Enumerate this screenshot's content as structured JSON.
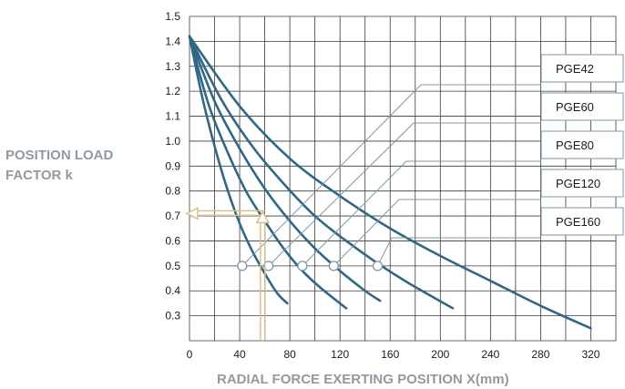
{
  "chart_data": {
    "type": "line",
    "title": "",
    "ylabel_lines": [
      "POSITION LOAD",
      "FACTOR k"
    ],
    "xlabel": "RADIAL FORCE EXERTING POSITION X(mm)",
    "xlim": [
      0,
      340
    ],
    "ylim": [
      0.2,
      1.5
    ],
    "x_ticks": [
      0,
      40,
      80,
      120,
      160,
      200,
      240,
      280,
      320
    ],
    "y_ticks": [
      0.3,
      0.4,
      0.5,
      0.6,
      0.7,
      0.8,
      0.9,
      1.0,
      1.1,
      1.2,
      1.3,
      1.4,
      1.5
    ],
    "grid": true,
    "colors": {
      "curve": "#2f6784",
      "grid": "#3a3a3a",
      "leader": "#7d97a6",
      "example": "#d9bf8c",
      "label_text": "#8f9aa3"
    },
    "series": [
      {
        "name": "PGE42",
        "x": [
          0,
          10,
          20,
          30,
          40,
          50,
          60,
          70,
          78
        ],
        "y": [
          1.42,
          1.18,
          0.98,
          0.81,
          0.67,
          0.56,
          0.47,
          0.39,
          0.35
        ],
        "marker": [
          42,
          0.5
        ]
      },
      {
        "name": "PGE60",
        "x": [
          0,
          15,
          30,
          45,
          60,
          75,
          90,
          105,
          125
        ],
        "y": [
          1.42,
          1.15,
          0.96,
          0.8,
          0.68,
          0.57,
          0.48,
          0.41,
          0.33
        ],
        "marker": [
          63,
          0.5
        ]
      },
      {
        "name": "PGE80",
        "x": [
          0,
          20,
          40,
          60,
          80,
          100,
          120,
          140,
          152
        ],
        "y": [
          1.42,
          1.16,
          0.97,
          0.81,
          0.68,
          0.57,
          0.48,
          0.4,
          0.36
        ],
        "marker": [
          90,
          0.5
        ]
      },
      {
        "name": "PGE120",
        "x": [
          0,
          25,
          50,
          75,
          100,
          125,
          150,
          175,
          210
        ],
        "y": [
          1.42,
          1.17,
          0.98,
          0.83,
          0.7,
          0.6,
          0.51,
          0.43,
          0.33
        ],
        "marker": [
          115,
          0.5
        ]
      },
      {
        "name": "PGE160",
        "x": [
          0,
          40,
          80,
          120,
          160,
          200,
          240,
          280,
          320
        ],
        "y": [
          1.42,
          1.14,
          0.93,
          0.78,
          0.65,
          0.54,
          0.44,
          0.34,
          0.25
        ],
        "marker": [
          150,
          0.5
        ]
      }
    ],
    "example": {
      "x": 58,
      "k": 0.71
    }
  }
}
